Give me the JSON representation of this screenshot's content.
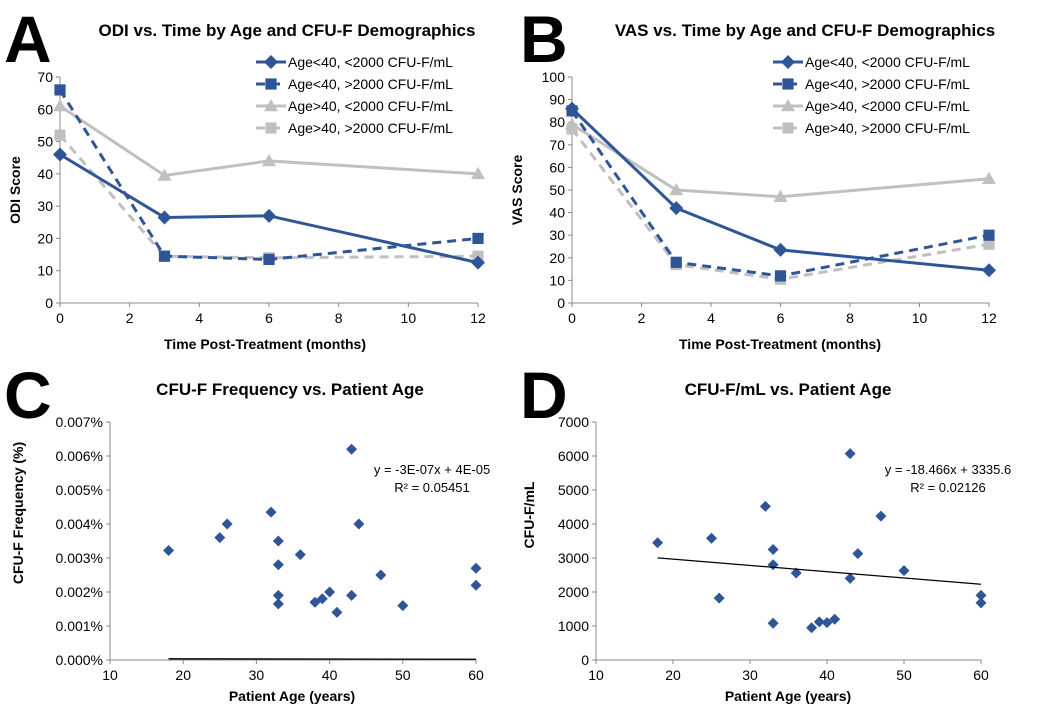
{
  "chart_data": [
    {
      "panel_letter": "A",
      "type": "line",
      "title": "ODI vs. Time by Age and CFU-F Demographics",
      "xlabel": "Time Post-Treatment (months)",
      "ylabel": "ODI Score",
      "xlim": [
        0,
        12
      ],
      "ylim": [
        0,
        70
      ],
      "xticks": [
        0,
        2,
        4,
        6,
        8,
        10,
        12
      ],
      "yticks": [
        0,
        10,
        20,
        30,
        40,
        50,
        60,
        70
      ],
      "x": [
        0,
        3,
        6,
        12
      ],
      "legend_position": "top-right",
      "series": [
        {
          "name": "Age<40, <2000 CFU-F/mL",
          "values": [
            46,
            26.5,
            27,
            12.5
          ],
          "color": "#2f5597",
          "dash": "solid",
          "marker": "diamond"
        },
        {
          "name": "Age<40, >2000 CFU-F/mL",
          "values": [
            66,
            14.5,
            13.5,
            20
          ],
          "color": "#2f5597",
          "dash": "dashed",
          "marker": "square"
        },
        {
          "name": "Age>40, <2000 CFU-F/mL",
          "values": [
            61,
            39.5,
            44,
            40
          ],
          "color": "#c0c0c0",
          "dash": "solid",
          "marker": "triangle"
        },
        {
          "name": "Age>40, >2000 CFU-F/mL",
          "values": [
            52,
            14.5,
            14,
            14.5
          ],
          "color": "#c0c0c0",
          "dash": "dashed",
          "marker": "square"
        }
      ]
    },
    {
      "panel_letter": "B",
      "type": "line",
      "title": "VAS vs. Time by Age and CFU-F Demographics",
      "xlabel": "Time Post-Treatment (months)",
      "ylabel": "VAS Score",
      "xlim": [
        0,
        12
      ],
      "ylim": [
        0,
        100
      ],
      "xticks": [
        0,
        2,
        4,
        6,
        8,
        10,
        12
      ],
      "yticks": [
        0,
        10,
        20,
        30,
        40,
        50,
        60,
        70,
        80,
        90,
        100
      ],
      "x": [
        0,
        3,
        6,
        12
      ],
      "legend_position": "top-right",
      "series": [
        {
          "name": "Age<40, <2000 CFU-F/mL",
          "values": [
            86,
            42,
            23.5,
            14.5
          ],
          "color": "#2f5597",
          "dash": "solid",
          "marker": "diamond"
        },
        {
          "name": "Age<40, >2000 CFU-F/mL",
          "values": [
            85,
            18,
            12,
            30
          ],
          "color": "#2f5597",
          "dash": "dashed",
          "marker": "square"
        },
        {
          "name": "Age>40, <2000 CFU-F/mL",
          "values": [
            79,
            50,
            47,
            55
          ],
          "color": "#c0c0c0",
          "dash": "solid",
          "marker": "triangle"
        },
        {
          "name": "Age>40, >2000 CFU-F/mL",
          "values": [
            77,
            17,
            10.5,
            26
          ],
          "color": "#c0c0c0",
          "dash": "dashed",
          "marker": "square"
        }
      ]
    },
    {
      "panel_letter": "C",
      "type": "scatter",
      "title": "CFU-F Frequency vs. Patient Age",
      "xlabel": "Patient Age (years)",
      "ylabel": "CFU-F Frequency (%)",
      "xlim": [
        10,
        60
      ],
      "ylim": [
        0,
        0.007
      ],
      "xticks": [
        10,
        20,
        30,
        40,
        50,
        60
      ],
      "yticks": [
        0,
        0.001,
        0.002,
        0.003,
        0.004,
        0.005,
        0.006,
        0.007
      ],
      "ytick_labels": [
        "0.000%",
        "0.001%",
        "0.002%",
        "0.003%",
        "0.004%",
        "0.005%",
        "0.006%",
        "0.007%"
      ],
      "equation": "y = -3E-07x + 4E-05",
      "r_squared": "R² = 0.05451",
      "trendline": {
        "slope": -3e-07,
        "intercept": 4e-05
      },
      "color": "#2f5597",
      "points": [
        [
          18,
          0.00322
        ],
        [
          25,
          0.0036
        ],
        [
          26,
          0.004
        ],
        [
          32,
          0.00435
        ],
        [
          33,
          0.0035
        ],
        [
          33,
          0.0028
        ],
        [
          33,
          0.0019
        ],
        [
          33,
          0.00165
        ],
        [
          36,
          0.0031
        ],
        [
          38,
          0.0017
        ],
        [
          39,
          0.0018
        ],
        [
          40,
          0.002
        ],
        [
          41,
          0.0014
        ],
        [
          43,
          0.0062
        ],
        [
          43,
          0.0019
        ],
        [
          44,
          0.004
        ],
        [
          47,
          0.0025
        ],
        [
          50,
          0.0016
        ],
        [
          60,
          0.0027
        ],
        [
          60,
          0.0022
        ]
      ]
    },
    {
      "panel_letter": "D",
      "type": "scatter",
      "title": "CFU-F/mL vs. Patient Age",
      "xlabel": "Patient Age (years)",
      "ylabel": "CFU-F/mL",
      "xlim": [
        10,
        60
      ],
      "ylim": [
        0,
        7000
      ],
      "xticks": [
        10,
        20,
        30,
        40,
        50,
        60
      ],
      "yticks": [
        0,
        1000,
        2000,
        3000,
        4000,
        5000,
        6000,
        7000
      ],
      "ytick_labels": [
        "0",
        "1000",
        "2000",
        "3000",
        "4000",
        "5000",
        "6000",
        "7000"
      ],
      "equation": "y = -18.466x + 3335.6",
      "r_squared": "R² = 0.02126",
      "trendline": {
        "slope": -18.466,
        "intercept": 3335.6
      },
      "color": "#2f5597",
      "points": [
        [
          18,
          3450
        ],
        [
          25,
          3580
        ],
        [
          26,
          1820
        ],
        [
          32,
          4520
        ],
        [
          33,
          3250
        ],
        [
          33,
          2800
        ],
        [
          33,
          1080
        ],
        [
          36,
          2560
        ],
        [
          38,
          950
        ],
        [
          39,
          1120
        ],
        [
          40,
          1100
        ],
        [
          41,
          1200
        ],
        [
          43,
          6070
        ],
        [
          43,
          2400
        ],
        [
          44,
          3130
        ],
        [
          47,
          4230
        ],
        [
          50,
          2630
        ],
        [
          60,
          1900
        ],
        [
          60,
          1680
        ]
      ]
    }
  ]
}
